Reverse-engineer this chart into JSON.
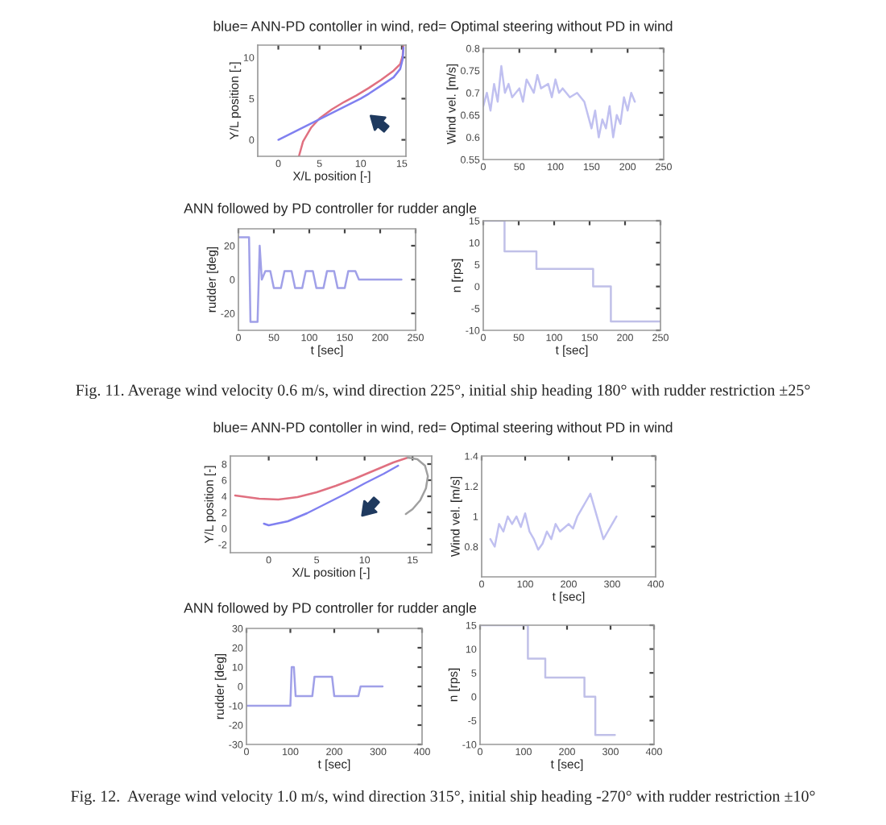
{
  "chart_data": [
    {
      "type": "line",
      "title": "blue= ANN-PD contoller in wind, red= Optimal steering without PD in wind",
      "xlabel": "X/L position [-]",
      "ylabel": "Y/L position [-]",
      "xlim": [
        -2.5,
        15.5
      ],
      "ylim": [
        -2,
        11.5
      ],
      "xticks": [
        0,
        5,
        10,
        15
      ],
      "yticks": [
        0,
        5,
        10
      ],
      "series": [
        {
          "color": "#e07080",
          "x": [
            2.5,
            3,
            4,
            5,
            6.5,
            8,
            9.5,
            11,
            12.5,
            14,
            14.8,
            15.1,
            15.2
          ],
          "values": [
            -2,
            -0.2,
            1.5,
            2.6,
            3.7,
            4.6,
            5.4,
            6.3,
            7.3,
            8.4,
            9.2,
            10.2,
            11.5
          ]
        },
        {
          "color": "#8080f0",
          "x": [
            0,
            2,
            4,
            6,
            8,
            10,
            11,
            12.5,
            14,
            14.8,
            15.1,
            15.2
          ],
          "values": [
            0,
            1.0,
            2.0,
            3.0,
            4.0,
            5.0,
            5.6,
            6.6,
            7.6,
            8.6,
            9.8,
            11.2
          ]
        }
      ]
    },
    {
      "type": "line",
      "ylabel": "Wind vel. [m/s]",
      "xlim": [
        0,
        250
      ],
      "ylim": [
        0.55,
        0.8
      ],
      "xticks": [
        0,
        50,
        100,
        150,
        200,
        250
      ],
      "yticks": [
        0.55,
        0.6,
        0.65,
        0.7,
        0.75,
        0.8
      ],
      "series": [
        {
          "color": "#c0c0f0",
          "x": [
            0,
            5,
            10,
            15,
            20,
            25,
            30,
            35,
            40,
            50,
            55,
            60,
            70,
            75,
            80,
            90,
            95,
            100,
            105,
            110,
            120,
            130,
            140,
            150,
            155,
            160,
            165,
            170,
            175,
            180,
            185,
            190,
            195,
            200,
            205,
            210
          ],
          "values": [
            0.67,
            0.7,
            0.66,
            0.72,
            0.68,
            0.76,
            0.7,
            0.72,
            0.69,
            0.71,
            0.68,
            0.73,
            0.7,
            0.74,
            0.71,
            0.72,
            0.69,
            0.73,
            0.7,
            0.71,
            0.69,
            0.7,
            0.68,
            0.62,
            0.66,
            0.6,
            0.64,
            0.62,
            0.67,
            0.6,
            0.65,
            0.63,
            0.69,
            0.66,
            0.7,
            0.68
          ]
        }
      ]
    },
    {
      "type": "line",
      "title": "ANN followed by PD controller for rudder angle",
      "xlabel": "t [sec]",
      "ylabel": "rudder [deg]",
      "xlim": [
        0,
        250
      ],
      "ylim": [
        -30,
        30
      ],
      "xticks": [
        0,
        50,
        100,
        150,
        200,
        250
      ],
      "yticks": [
        -20,
        0,
        20
      ],
      "series": [
        {
          "color": "#a0a0e8",
          "x": [
            0,
            15,
            17,
            27,
            30,
            33,
            38,
            45,
            50,
            60,
            65,
            75,
            80,
            90,
            95,
            105,
            110,
            120,
            125,
            135,
            140,
            150,
            155,
            165,
            170,
            180,
            230
          ],
          "values": [
            25,
            25,
            -25,
            -25,
            20,
            0,
            5,
            5,
            -5,
            -5,
            5,
            5,
            -5,
            -5,
            5,
            5,
            -5,
            -5,
            5,
            5,
            -5,
            -5,
            5,
            5,
            0,
            0,
            0
          ]
        }
      ]
    },
    {
      "type": "line",
      "xlabel": "t [sec]",
      "ylabel": "n [rps]",
      "xlim": [
        0,
        250
      ],
      "ylim": [
        -10,
        15
      ],
      "xticks": [
        0,
        50,
        100,
        150,
        200,
        250
      ],
      "yticks": [
        -10,
        -5,
        0,
        5,
        10,
        15
      ],
      "annotations": [
        "Fig. 11. Average wind velocity 0.6 m/s, wind direction 225°, initial ship heading 180° with rudder restriction ±25°"
      ],
      "series": [
        {
          "type": "step",
          "color": "#c0c0e8",
          "x": [
            0,
            30,
            75,
            155,
            180,
            250
          ],
          "values": [
            15,
            8,
            4,
            0,
            -8,
            -8
          ]
        }
      ]
    },
    {
      "type": "line",
      "title": "blue= ANN-PD contoller in wind, red= Optimal steering without PD in wind",
      "xlabel": "X/L position [-]",
      "ylabel": "Y/L position [-]",
      "xlim": [
        -4,
        17
      ],
      "ylim": [
        -3,
        9
      ],
      "xticks": [
        0,
        5,
        10,
        15
      ],
      "yticks": [
        -2,
        0,
        2,
        4,
        6,
        8
      ],
      "series": [
        {
          "color": "#e07080",
          "x": [
            -3.5,
            -1,
            1,
            3,
            5,
            7,
            9,
            11,
            13,
            14.5
          ],
          "values": [
            4.1,
            3.7,
            3.6,
            3.9,
            4.5,
            5.3,
            6.2,
            7.2,
            8.2,
            8.8
          ]
        },
        {
          "color": "#8080f0",
          "x": [
            -0.5,
            0,
            2,
            4,
            6,
            8,
            10,
            12,
            13.5
          ],
          "values": [
            0.6,
            0.4,
            0.9,
            1.9,
            3.1,
            4.3,
            5.6,
            6.8,
            7.8
          ]
        },
        {
          "color": "#a0a0a0",
          "x": [
            14.5,
            15.5,
            16.3,
            16.6,
            16.4,
            15.8,
            15,
            14.3
          ],
          "values": [
            8.8,
            8.6,
            7.8,
            6.5,
            5.0,
            3.5,
            2.4,
            1.8
          ]
        }
      ]
    },
    {
      "type": "line",
      "xlabel": "t [sec]",
      "ylabel": "Wind vel. [m/s]",
      "xlim": [
        0,
        400
      ],
      "ylim": [
        0.6,
        1.4
      ],
      "xticks": [
        0,
        100,
        200,
        300,
        400
      ],
      "yticks": [
        0.8,
        1,
        1.2,
        1.4
      ],
      "series": [
        {
          "color": "#c0c0f0",
          "x": [
            20,
            30,
            40,
            50,
            60,
            70,
            80,
            90,
            100,
            110,
            120,
            130,
            140,
            150,
            160,
            170,
            180,
            200,
            210,
            220,
            230,
            240,
            250,
            260,
            270,
            280,
            290,
            300,
            310
          ],
          "values": [
            0.85,
            0.8,
            0.95,
            0.9,
            1.0,
            0.95,
            1.0,
            0.93,
            1.02,
            0.9,
            0.85,
            0.78,
            0.82,
            0.9,
            0.85,
            0.95,
            0.9,
            0.95,
            0.92,
            1.0,
            1.05,
            1.1,
            1.15,
            1.05,
            0.95,
            0.85,
            0.9,
            0.95,
            1.0
          ]
        }
      ]
    },
    {
      "type": "line",
      "title": "ANN followed by PD controller for rudder angle",
      "xlabel": "t [sec]",
      "ylabel": "rudder [deg]",
      "xlim": [
        0,
        400
      ],
      "ylim": [
        -30,
        30
      ],
      "xticks": [
        0,
        100,
        200,
        300,
        400
      ],
      "yticks": [
        -30,
        -20,
        -10,
        0,
        10,
        20,
        30
      ],
      "series": [
        {
          "color": "#a0a0e8",
          "x": [
            0,
            100,
            103,
            108,
            112,
            150,
            155,
            195,
            200,
            255,
            260,
            310
          ],
          "values": [
            -10,
            -10,
            10,
            10,
            -5,
            -5,
            5,
            5,
            -5,
            -5,
            0,
            0
          ]
        }
      ]
    },
    {
      "type": "line",
      "xlabel": "t [sec]",
      "ylabel": "n [rps]",
      "xlim": [
        0,
        400
      ],
      "ylim": [
        -10,
        15
      ],
      "xticks": [
        0,
        100,
        200,
        300,
        400
      ],
      "yticks": [
        -10,
        -5,
        0,
        5,
        10,
        15
      ],
      "annotations": [
        "Fig. 12.  Average wind velocity 1.0 m/s, wind direction 315°, initial ship heading -270° with rudder restriction ±10°"
      ],
      "series": [
        {
          "type": "step",
          "color": "#c0c0e8",
          "x": [
            0,
            110,
            150,
            240,
            265,
            310
          ],
          "values": [
            15,
            8,
            4,
            0,
            -8,
            -8
          ]
        }
      ]
    }
  ]
}
